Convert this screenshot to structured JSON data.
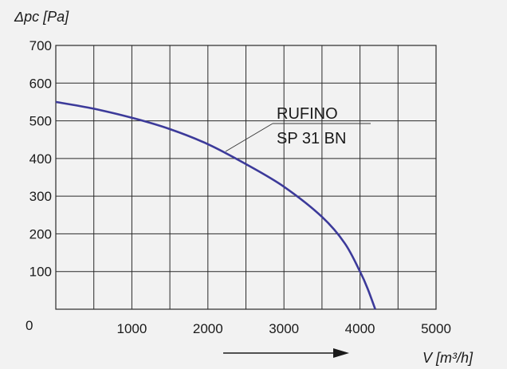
{
  "chart_data": {
    "type": "line",
    "ylabel": "Δpc [Pa]",
    "xlabel": "V [m³/h]",
    "xlim": [
      0,
      5000
    ],
    "ylim": [
      0,
      700
    ],
    "x_ticks": [
      1000,
      2000,
      3000,
      4000,
      5000
    ],
    "y_ticks": [
      100,
      200,
      300,
      400,
      500,
      600,
      700
    ],
    "origin_label": "0",
    "grid": true,
    "series": [
      {
        "name": "RUFINO SP 31 BN",
        "color": "#3c3a9a",
        "x": [
          0,
          500,
          1000,
          1500,
          2000,
          2500,
          3000,
          3500,
          3800,
          4000,
          4100,
          4200
        ],
        "y": [
          550,
          532,
          508,
          478,
          438,
          385,
          325,
          245,
          175,
          100,
          55,
          0
        ]
      }
    ],
    "annotation": {
      "line1": "RUFINO",
      "line2": "SP 31 BN"
    }
  }
}
